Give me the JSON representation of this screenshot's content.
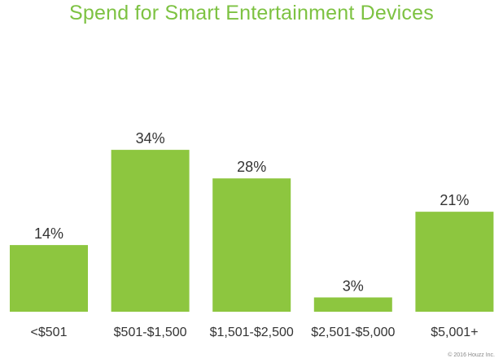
{
  "chart_data": {
    "type": "bar",
    "title": "Spend for Smart Entertainment Devices",
    "categories": [
      "<$501",
      "$501-$1,500",
      "$1,501-$2,500",
      "$2,501-$5,000",
      "$5,001+"
    ],
    "values": [
      14,
      34,
      28,
      3,
      21
    ],
    "value_labels": [
      "14%",
      "34%",
      "28%",
      "3%",
      "21%"
    ],
    "unit": "%",
    "ylim": [
      0,
      40
    ],
    "grid": false,
    "legend": "none",
    "bar_color": "#8dc63f",
    "title_color": "#7dc242"
  },
  "footer": {
    "copyright": "© 2016 Houzz Inc."
  }
}
